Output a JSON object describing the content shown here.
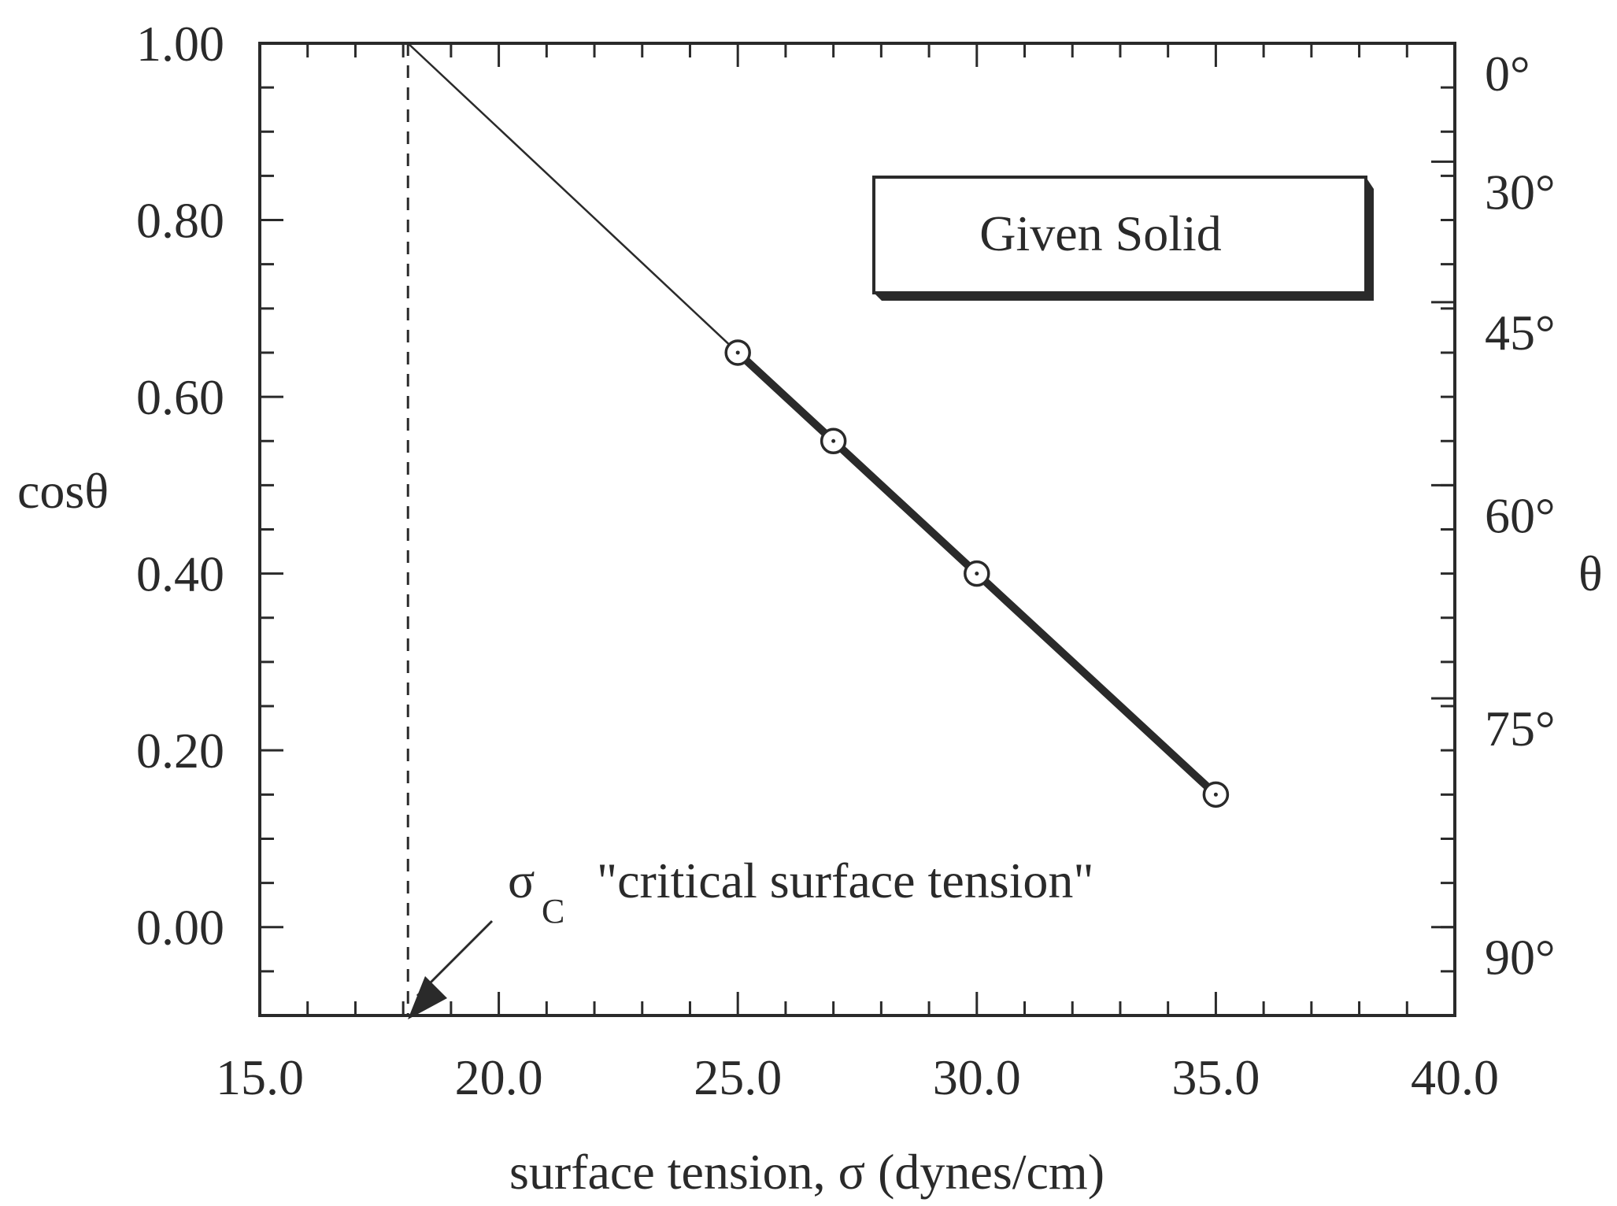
{
  "chart_data": {
    "type": "line",
    "title": "",
    "xlabel": "surface tension, σ (dynes/cm)",
    "ylabel": "cosθ",
    "y2label": "θ",
    "xlim": [
      15.0,
      40.0
    ],
    "ylim": [
      -0.1,
      1.0
    ],
    "x_ticks": [
      15.0,
      20.0,
      25.0,
      30.0,
      35.0,
      40.0
    ],
    "x_tick_labels": [
      "15.0",
      "20.0",
      "25.0",
      "30.0",
      "35.0",
      "40.0"
    ],
    "y_ticks": [
      0.0,
      0.2,
      0.4,
      0.6,
      0.8,
      1.0
    ],
    "y_tick_labels": [
      "0.00",
      "0.20",
      "0.40",
      "0.60",
      "0.80",
      "1.00"
    ],
    "theta_ticks": [
      {
        "deg": 0,
        "label": "0°"
      },
      {
        "deg": 30,
        "label": "30°"
      },
      {
        "deg": 45,
        "label": "45°"
      },
      {
        "deg": 60,
        "label": "60°"
      },
      {
        "deg": 75,
        "label": "75°"
      },
      {
        "deg": 90,
        "label": "90°"
      }
    ],
    "series": [
      {
        "x": [
          25.0,
          27.0,
          30.0,
          35.0
        ],
        "y": [
          0.65,
          0.55,
          0.4,
          0.15
        ]
      }
    ],
    "extrapolation": {
      "x": [
        18.1,
        25.0
      ],
      "y": [
        1.0,
        0.65
      ]
    },
    "critical_x": 18.1,
    "box_label": "Given Solid",
    "annotation": {
      "symbol": "σ",
      "subscript": "C",
      "text": "\"critical surface tension\""
    },
    "grid": false,
    "legend": "none",
    "colors": {
      "ink": "#2a2a2a",
      "background": "#ffffff"
    }
  }
}
